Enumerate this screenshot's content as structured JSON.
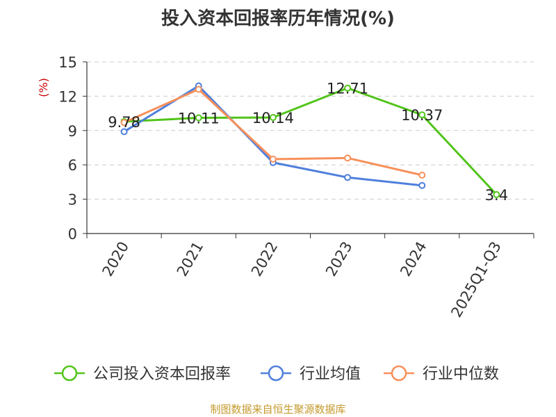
{
  "page": {
    "title": "投入资本回报率历年情况(%)",
    "source": "制图数据来自恒生聚源数据库"
  },
  "chart_data": {
    "type": "line",
    "title": "投入资本回报率历年情况(%)",
    "ylabel": "(%)",
    "xlabel": "",
    "categories": [
      "2020",
      "2021",
      "2022",
      "2023",
      "2024",
      "2025Q1-Q3"
    ],
    "ylim": [
      0,
      15
    ],
    "yticks": [
      "0",
      "3",
      "6",
      "9",
      "12",
      "15"
    ],
    "grid": true,
    "legend_position": "bottom",
    "series": [
      {
        "name": "公司投入资本回报率",
        "color": "#52c41a",
        "values": [
          9.78,
          10.11,
          10.14,
          12.71,
          10.37,
          3.4
        ],
        "labels": [
          "9.78",
          "10.11",
          "10.14",
          "12.71",
          "10.37",
          "3.4"
        ]
      },
      {
        "name": "行业均值",
        "color": "#4f7fdc",
        "values": [
          8.9,
          12.9,
          6.2,
          4.9,
          4.2,
          null
        ]
      },
      {
        "name": "行业中位数",
        "color": "#f7905a",
        "values": [
          9.7,
          12.6,
          6.5,
          6.6,
          5.1,
          null
        ]
      }
    ]
  }
}
